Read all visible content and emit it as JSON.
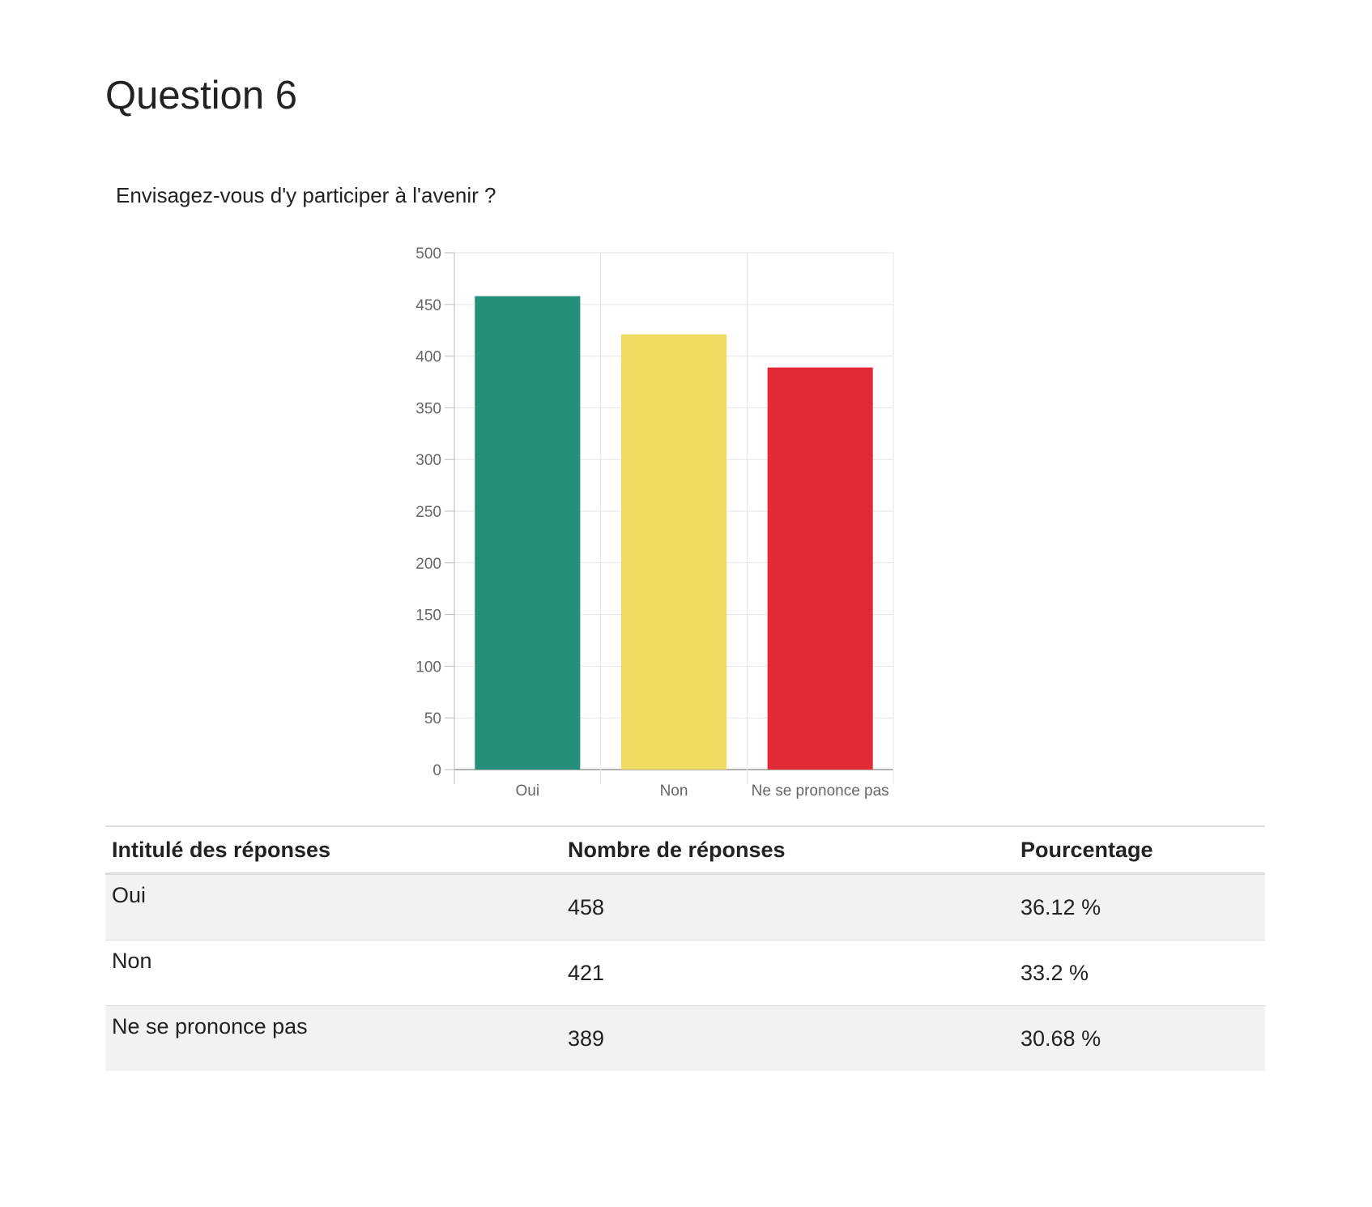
{
  "page": {
    "title": "Question 6",
    "question": "Envisagez-vous d'y participer à l'avenir ?"
  },
  "chart_data": {
    "type": "bar",
    "categories": [
      "Oui",
      "Non",
      "Ne se prononce pas"
    ],
    "values": [
      458,
      421,
      389
    ],
    "colors": [
      "#24907a",
      "#f0dc62",
      "#e22a36"
    ],
    "ylim": [
      0,
      500
    ],
    "yticks": [
      0,
      50,
      100,
      150,
      200,
      250,
      300,
      350,
      400,
      450,
      500
    ],
    "grid": true,
    "legend": "none",
    "title": "",
    "xlabel": "",
    "ylabel": ""
  },
  "table": {
    "headers": [
      "Intitulé des réponses",
      "Nombre de réponses",
      "Pourcentage"
    ],
    "rows": [
      {
        "label": "Oui",
        "count": "458",
        "percent": "36.12 %"
      },
      {
        "label": "Non",
        "count": "421",
        "percent": "33.2 %"
      },
      {
        "label": "Ne se prononce pas",
        "count": "389",
        "percent": "30.68 %"
      }
    ]
  }
}
